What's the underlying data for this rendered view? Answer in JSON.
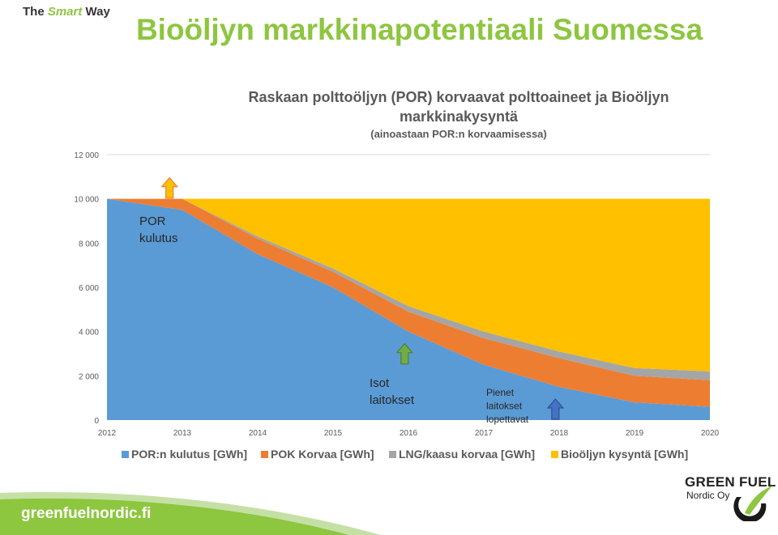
{
  "header": {
    "brand_prefix": "The",
    "brand_highlight": "Smart",
    "brand_suffix": "Way",
    "title": "Bioöljyn markkinapotentiaali Suomessa"
  },
  "colors": {
    "title_green": "#8dc63f",
    "series_blue": "#5b9bd5",
    "series_orange": "#ed7d31",
    "series_gray": "#a5a5a5",
    "series_yellow": "#ffc000"
  },
  "chart_data": {
    "type": "area",
    "stacked": true,
    "title_line1": "Raskaan polttoöljyn (POR) korvaavat polttoaineet ja Bioöljyn",
    "title_line2": "markkinakysyntä",
    "subtitle": "(ainoastaan POR:n korvaamisessa)",
    "x": [
      "2012",
      "2013",
      "2014",
      "2015",
      "2016",
      "2017",
      "2018",
      "2019",
      "2020"
    ],
    "ylim": [
      0,
      12000
    ],
    "yticks": [
      0,
      2000,
      4000,
      6000,
      8000,
      10000,
      12000
    ],
    "ytick_labels": [
      "0",
      "2 000",
      "4 000",
      "6 000",
      "8 000",
      "10 000",
      "12 000"
    ],
    "grid": true,
    "legend_position": "bottom",
    "series": [
      {
        "name": "POR:n kulutus [GWh]",
        "color": "#5b9bd5",
        "values": [
          10000,
          9500,
          7500,
          6000,
          4000,
          2500,
          1500,
          800,
          600
        ]
      },
      {
        "name": "POK Korvaa [GWh]",
        "color": "#ed7d31",
        "values": [
          0,
          500,
          700,
          700,
          900,
          1200,
          1300,
          1200,
          1200
        ]
      },
      {
        "name": "LNG/kaasu korvaa [GWh]",
        "color": "#a5a5a5",
        "values": [
          0,
          0,
          100,
          150,
          250,
          300,
          300,
          350,
          400
        ]
      },
      {
        "name": "Bioöljyn kysyntä [GWh]",
        "color": "#ffc000",
        "values": [
          0,
          0,
          1700,
          3150,
          4850,
          6000,
          6900,
          7650,
          7800
        ]
      }
    ],
    "annotations": [
      {
        "id": "por",
        "lines": [
          "POR",
          "kulutus"
        ]
      },
      {
        "id": "isot",
        "lines": [
          "Isot",
          "laitokset"
        ]
      },
      {
        "id": "pienet",
        "lines": [
          "Pienet",
          "laitokset",
          "lopettavat"
        ]
      }
    ],
    "arrows": [
      {
        "name": "orange-up-arrow-icon",
        "x": 2012.83,
        "y": 10000,
        "fill": "#ffc000",
        "stroke": "#ed7d31"
      },
      {
        "name": "green-up-arrow-icon",
        "x": 2015.95,
        "y": 2500,
        "fill": "#70ad47",
        "stroke": "#507e32"
      },
      {
        "name": "blue-up-arrow-icon",
        "x": 2017.95,
        "y": 0,
        "fill": "#4472c4",
        "stroke": "#2f528f"
      }
    ]
  },
  "footer": {
    "url": "greenfuelnordic.fi",
    "logo_line1": "GREEN FUEL",
    "logo_line2": "Nordic Oy"
  }
}
